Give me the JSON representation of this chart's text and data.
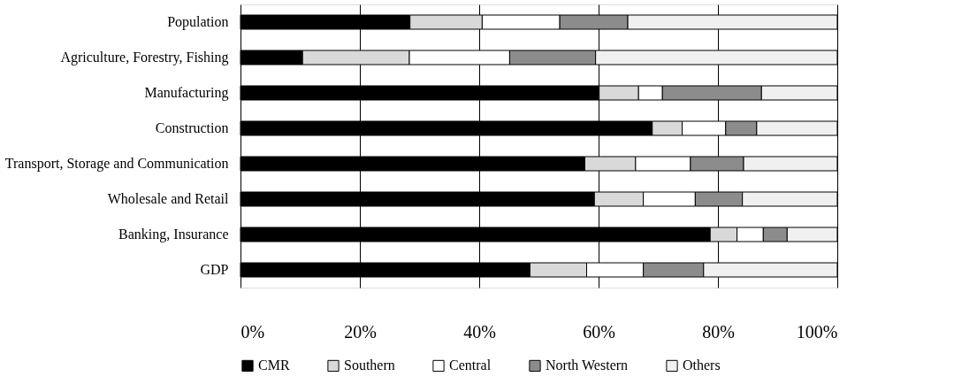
{
  "chart_data": {
    "type": "bar",
    "orientation": "horizontal",
    "stacked": true,
    "categories": [
      "Population",
      "Agriculture, Forestry, Fishing",
      "Manufacturing",
      "Construction",
      "Transport, Storage and Communication",
      "Wholesale and Retail",
      "Banking, Insurance",
      "GDP"
    ],
    "series": [
      {
        "name": "CMR",
        "color": "#000000",
        "values": [
          28.4,
          10.4,
          60.1,
          69.0,
          57.7,
          59.3,
          78.7,
          48.5
        ]
      },
      {
        "name": "Southern",
        "color": "#d9d9d9",
        "values": [
          12.1,
          17.9,
          6.6,
          5.0,
          8.5,
          8.2,
          4.5,
          9.5
        ]
      },
      {
        "name": "Central",
        "color": "#ffffff",
        "values": [
          13.0,
          16.8,
          4.0,
          7.3,
          9.2,
          8.7,
          4.4,
          9.5
        ]
      },
      {
        "name": "North Western",
        "color": "#8c8c8c",
        "values": [
          11.4,
          14.4,
          16.6,
          5.2,
          8.9,
          7.9,
          4.0,
          10.1
        ]
      },
      {
        "name": "Others",
        "color": "#f0f0f0",
        "values": [
          35.1,
          40.5,
          12.7,
          13.5,
          15.7,
          15.9,
          8.4,
          22.4
        ]
      }
    ],
    "xlim": [
      0,
      100
    ],
    "xticks": [
      {
        "value": 0,
        "label": "0%"
      },
      {
        "value": 20,
        "label": "20%"
      },
      {
        "value": 40,
        "label": "40%"
      },
      {
        "value": 60,
        "label": "60%"
      },
      {
        "value": 80,
        "label": "80%"
      },
      {
        "value": 100,
        "label": "100%"
      }
    ],
    "grid": "x",
    "legend": "bottom"
  }
}
